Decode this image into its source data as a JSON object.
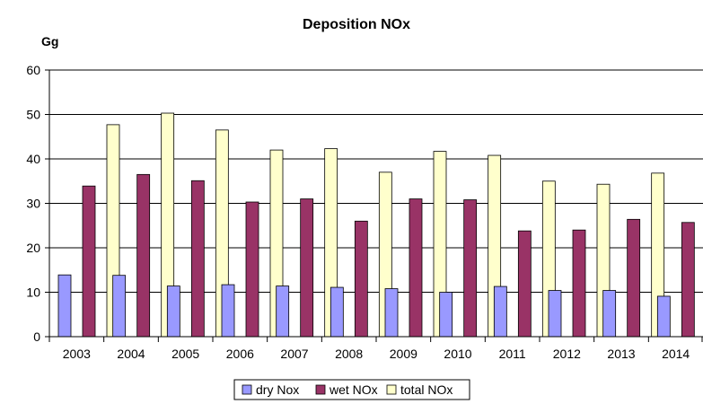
{
  "chart_data": {
    "type": "bar",
    "title": "Deposition NOx",
    "ylabel": "Gg",
    "xlabel": "",
    "ylim": [
      0,
      60
    ],
    "yticks": [
      0,
      10,
      20,
      30,
      40,
      50,
      60
    ],
    "grid": true,
    "legend_position": "bottom",
    "categories": [
      "2003",
      "2004",
      "2005",
      "2006",
      "2007",
      "2008",
      "2009",
      "2010",
      "2011",
      "2012",
      "2013",
      "2014"
    ],
    "series": [
      {
        "name": "dry Nox",
        "color": "#9999ff",
        "values": [
          13.9,
          13.8,
          11.4,
          11.7,
          11.4,
          11.1,
          10.8,
          10.0,
          11.3,
          10.4,
          10.4,
          9.1
        ]
      },
      {
        "name": "wet NOx",
        "color": "#993366",
        "values": [
          33.9,
          36.5,
          35.1,
          30.3,
          31.0,
          26.0,
          31.0,
          30.8,
          23.8,
          24.0,
          26.4,
          25.7
        ]
      },
      {
        "name": "total NOx",
        "color": "#ffffcc",
        "values": [
          47.7,
          50.3,
          46.5,
          42.0,
          42.3,
          37.0,
          41.7,
          40.8,
          35.0,
          34.3,
          36.8,
          34.7
        ]
      }
    ]
  }
}
